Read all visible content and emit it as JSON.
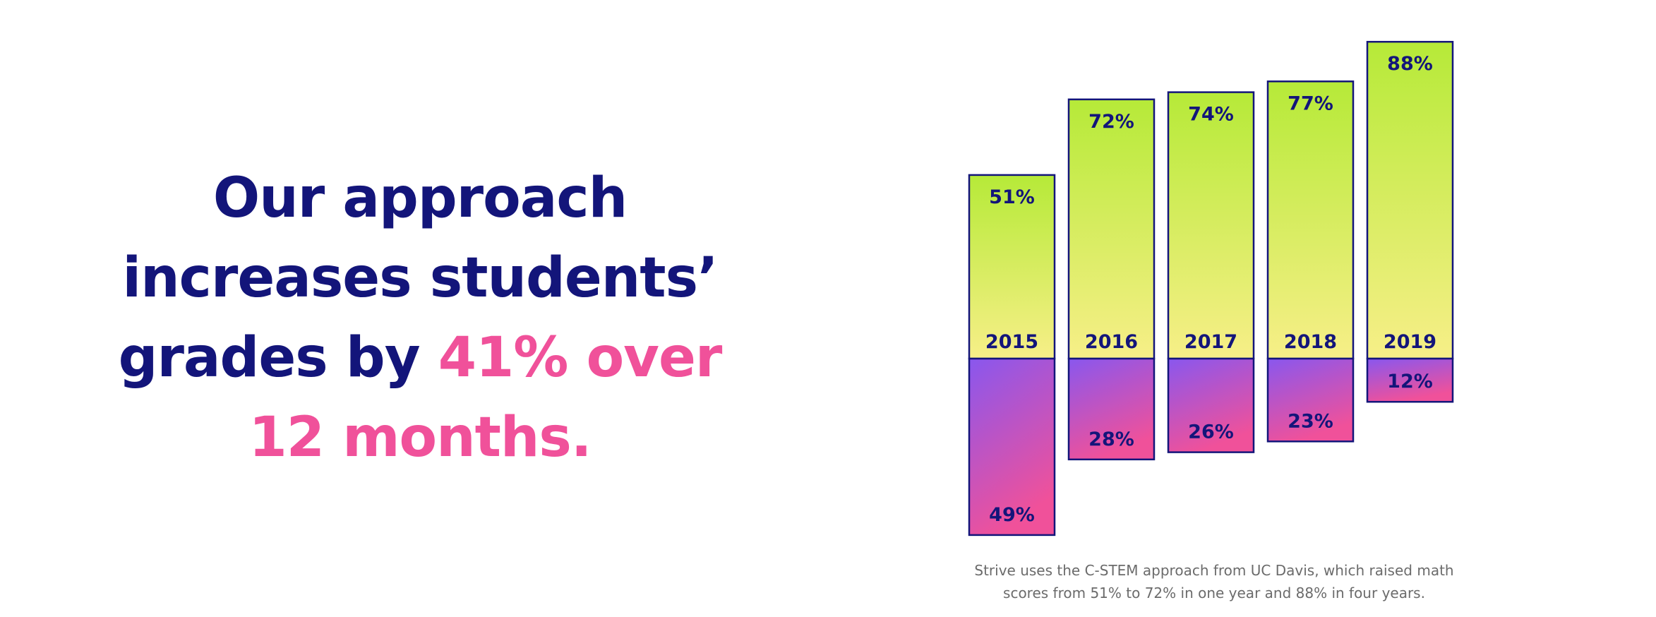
{
  "headline": {
    "line1": "Our approach",
    "line2": "increases students’",
    "line3_plain": "grades by ",
    "line3_accent": "41% over",
    "line4_accent": "12 months."
  },
  "caption": {
    "line1": "Strive uses the C-STEM approach from UC Davis, which raised math",
    "line2": "scores from 51% to 72% in one year and 88% in four years."
  },
  "colors": {
    "navy": "#13157a",
    "pink": "#f0519a",
    "lime": "#b8ea3a",
    "pale_yellow": "#f6ee86",
    "purple": "#8957ee"
  },
  "chart_data": {
    "type": "bar",
    "categories": [
      "2015",
      "2016",
      "2017",
      "2018",
      "2019"
    ],
    "series": [
      {
        "values": [
          51,
          72,
          74,
          77,
          88
        ]
      },
      {
        "values": [
          49,
          28,
          26,
          23,
          12
        ]
      }
    ],
    "value_labels_upper": [
      "51%",
      "72%",
      "74%",
      "77%",
      "88%"
    ],
    "value_labels_lower": [
      "49%",
      "28%",
      "26%",
      "23%",
      "12%"
    ],
    "ylim": [
      0,
      100
    ]
  }
}
